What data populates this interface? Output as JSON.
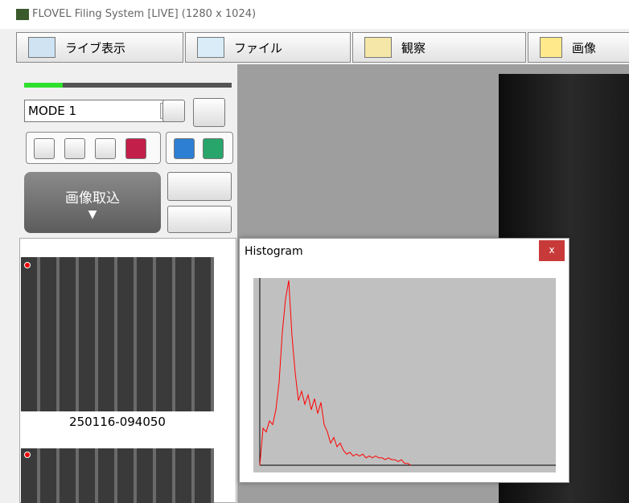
{
  "window": {
    "title": "FLOVEL Filing System [LIVE] (1280 x 1024)"
  },
  "toolbar": {
    "tabs": [
      "ライブ表示",
      "ファイル",
      "観察",
      "画像"
    ]
  },
  "panel": {
    "mode": "MODE 1",
    "capture": "画像取込"
  },
  "thumbnails": {
    "labels": [
      "250116-094050"
    ]
  },
  "histogram": {
    "title": "Histogram",
    "close": "x",
    "values": [
      0,
      20,
      18,
      24,
      22,
      30,
      45,
      72,
      90,
      100,
      70,
      50,
      35,
      40,
      33,
      38,
      30,
      36,
      28,
      34,
      22,
      18,
      12,
      15,
      10,
      12,
      8,
      6,
      7,
      5,
      6,
      5,
      6,
      4,
      5,
      4,
      5,
      4,
      4,
      3,
      4,
      3,
      3,
      2,
      3,
      1,
      1,
      0
    ],
    "color": "#ff0000"
  }
}
